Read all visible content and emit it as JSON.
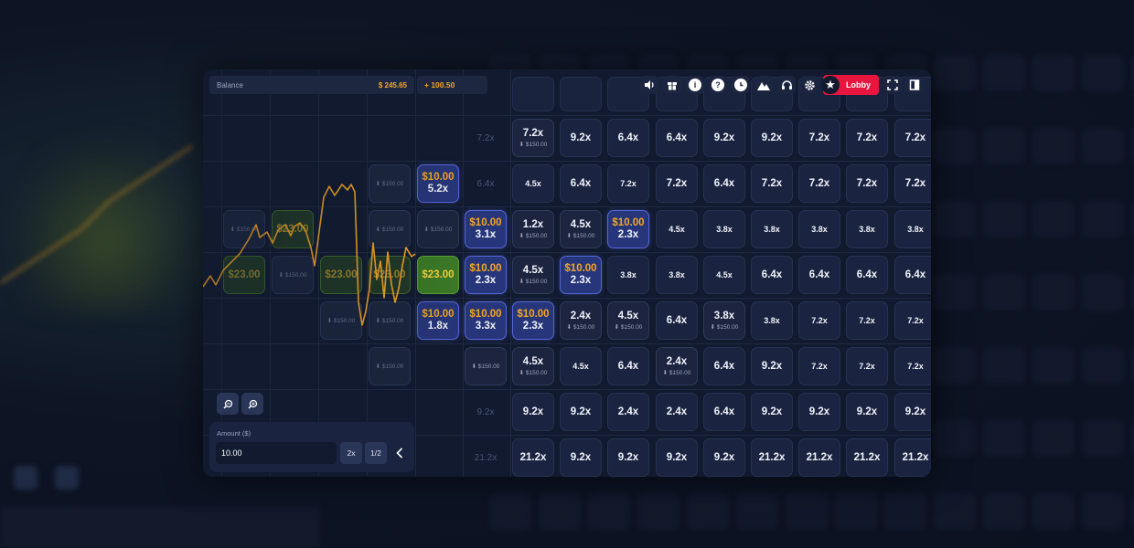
{
  "header": {
    "balance_label": "Balance",
    "balance_value": "$ 245.65",
    "gain_value": "+ 100.50",
    "lobby_label": "Lobby",
    "icons": [
      "sound-icon",
      "gift-icon",
      "info-icon",
      "help-icon",
      "history-icon",
      "stats-icon",
      "support-icon",
      "settings-icon"
    ]
  },
  "bet_panel": {
    "amount_label": "Amount ($)",
    "amount_value": "10.00",
    "double_label": "2x",
    "half_label": "1/2"
  },
  "grid": {
    "past_columns": [
      {
        "col": 0,
        "cells": [
          {
            "row": 2,
            "type": "past",
            "bet": "$150.00"
          },
          {
            "row": 3,
            "type": "winpast",
            "amount": "$23.00"
          }
        ]
      },
      {
        "col": 1,
        "cells": [
          {
            "row": 2,
            "type": "winpast",
            "amount": "$23.00"
          },
          {
            "row": 3,
            "type": "past",
            "bet": "$150.00"
          }
        ]
      },
      {
        "col": 2,
        "cells": [
          {
            "row": 3,
            "type": "winpast",
            "amount": "$23.00"
          },
          {
            "row": 4,
            "type": "past",
            "bet": "$150.00"
          }
        ]
      },
      {
        "col": 3,
        "cells": [
          {
            "row": 1,
            "type": "past",
            "bet": "$150.00"
          },
          {
            "row": 2,
            "type": "past",
            "bet": "$150.00"
          },
          {
            "row": 3,
            "type": "winpast",
            "amount": "$23.00"
          },
          {
            "row": 4,
            "type": "past",
            "bet": "$150.00"
          },
          {
            "row": 5,
            "type": "past",
            "bet": "$150.00"
          }
        ]
      },
      {
        "col": 4,
        "cells": [
          {
            "row": 1,
            "type": "sel",
            "amount": "$10.00",
            "mult": "5.2x"
          },
          {
            "row": 2,
            "type": "past",
            "bet": "$150.00"
          },
          {
            "row": 3,
            "type": "win",
            "amount": "$23.00"
          },
          {
            "row": 4,
            "type": "sel",
            "amount": "$10.00",
            "mult": "1.8x"
          }
        ]
      }
    ],
    "future_columns": [
      [
        "7.2x",
        "6.4x",
        {
          "amount": "$10.00",
          "mult": "3.1x"
        },
        {
          "amount": "$10.00",
          "mult": "2.3x"
        },
        {
          "amount": "$10.00",
          "mult": "3.3x"
        },
        {
          "bet": "$150.00"
        },
        "9.2x",
        "21.2x"
      ],
      [
        {
          "mult": "7.2x",
          "bet": "$150.00"
        },
        "4.5x",
        {
          "mult": "1.2x",
          "bet": "$150.00"
        },
        {
          "mult": "4.5x",
          "bet": "$150.00"
        },
        {
          "amount": "$10.00",
          "mult": "2.3x"
        },
        {
          "mult": "4.5x",
          "bet": "$150.00"
        },
        "9.2x",
        "21.2x"
      ],
      [
        "9.2x",
        "6.4x",
        {
          "mult": "4.5x",
          "bet": "$150.00"
        },
        {
          "amount": "$10.00",
          "mult": "2.3x"
        },
        {
          "mult": "2.4x",
          "bet": "$150.00"
        },
        "4.5x",
        "9.2x",
        "9.2x"
      ],
      [
        "6.4x",
        "7.2x",
        {
          "amount": "$10.00",
          "mult": "2.3x"
        },
        "3.8x",
        {
          "mult": "4.5x",
          "bet": "$150.00"
        },
        "6.4x",
        "2.4x",
        "9.2x"
      ],
      [
        "6.4x",
        "7.2x",
        "4.5x",
        "3.8x",
        "6.4x",
        {
          "mult": "2.4x",
          "bet": "$150.00"
        },
        "2.4x",
        "9.2x"
      ],
      [
        "9.2x",
        "6.4x",
        "3.8x",
        "4.5x",
        {
          "mult": "3.8x",
          "bet": "$150.00"
        },
        "6.4x",
        "6.4x",
        "9.2x"
      ],
      [
        "9.2x",
        "7.2x",
        "3.8x",
        "6.4x",
        "3.8x",
        "9.2x",
        "9.2x",
        "21.2x"
      ],
      [
        "7.2x",
        "7.2x",
        "3.8x",
        "6.4x",
        "7.2x",
        "7.2x",
        "9.2x",
        "21.2x"
      ],
      [
        "7.2x",
        "7.2x",
        "3.8x",
        "6.4x",
        "7.2x",
        "7.2x",
        "9.2x",
        "21.2x"
      ],
      [
        "7.2x",
        "7.2x",
        "3.8x",
        "6.4x",
        "7.2x",
        "7.2x",
        "9.2x",
        "21.2x"
      ]
    ],
    "small_font_values": [
      "7.2x@col1row1",
      "4.5x"
    ]
  },
  "colors": {
    "accent": "#f5a623",
    "lobby": "#e8163e",
    "selected": "#27367a",
    "win": "#3b7a26"
  }
}
